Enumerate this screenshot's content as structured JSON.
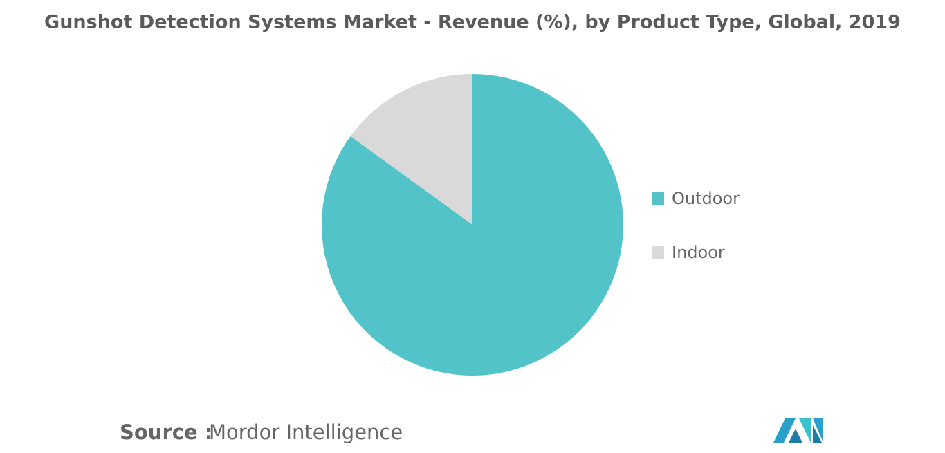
{
  "chart_data": {
    "type": "pie",
    "title": "Gunshot Detection Systems Market - Revenue (%), by Product Type, Global, 2019",
    "categories": [
      "Outdoor",
      "Indoor"
    ],
    "values": [
      85,
      15
    ],
    "colors": [
      "#52c4c9",
      "#d9d9d9"
    ],
    "legend": "right",
    "source_label": "Source :",
    "source": "Mordor Intelligence"
  }
}
